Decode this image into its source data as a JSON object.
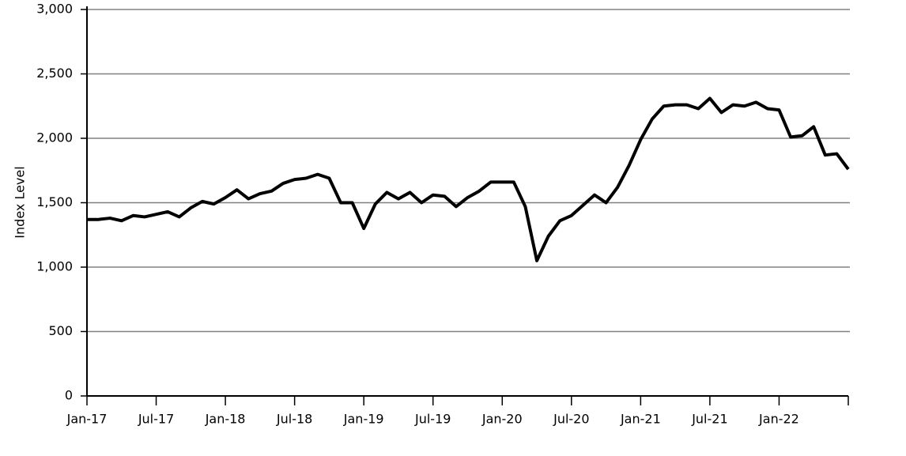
{
  "chart_data": {
    "type": "line",
    "y_label": "Index Level",
    "x": [
      "2017-01",
      "2017-02",
      "2017-03",
      "2017-04",
      "2017-05",
      "2017-06",
      "2017-07",
      "2017-08",
      "2017-09",
      "2017-10",
      "2017-11",
      "2017-12",
      "2018-01",
      "2018-02",
      "2018-03",
      "2018-04",
      "2018-05",
      "2018-06",
      "2018-07",
      "2018-08",
      "2018-09",
      "2018-10",
      "2018-11",
      "2018-12",
      "2019-01",
      "2019-02",
      "2019-03",
      "2019-04",
      "2019-05",
      "2019-06",
      "2019-07",
      "2019-08",
      "2019-09",
      "2019-10",
      "2019-11",
      "2019-12",
      "2020-01",
      "2020-02",
      "2020-03",
      "2020-04",
      "2020-05",
      "2020-06",
      "2020-07",
      "2020-08",
      "2020-09",
      "2020-10",
      "2020-11",
      "2020-12",
      "2021-01",
      "2021-02",
      "2021-03",
      "2021-04",
      "2021-05",
      "2021-06",
      "2021-07",
      "2021-08",
      "2021-09",
      "2021-10",
      "2021-11",
      "2021-12",
      "2022-01",
      "2022-02",
      "2022-03",
      "2022-04",
      "2022-05",
      "2022-06",
      "2022-07"
    ],
    "series": [
      {
        "name": "Index Level",
        "color": "#000000",
        "values": [
          1370,
          1370,
          1380,
          1360,
          1400,
          1390,
          1410,
          1430,
          1390,
          1460,
          1510,
          1490,
          1540,
          1600,
          1530,
          1570,
          1590,
          1650,
          1680,
          1690,
          1720,
          1690,
          1500,
          1500,
          1300,
          1490,
          1580,
          1530,
          1580,
          1500,
          1560,
          1550,
          1470,
          1540,
          1590,
          1660,
          1660,
          1660,
          1470,
          1050,
          1240,
          1360,
          1400,
          1480,
          1560,
          1500,
          1620,
          1790,
          1990,
          2150,
          2250,
          2260,
          2260,
          2230,
          2310,
          2200,
          2260,
          2250,
          2280,
          2230,
          2220,
          2010,
          2020,
          2090,
          1870,
          1880,
          1760
        ]
      }
    ],
    "xlim": [
      "2017-01",
      "2022-07"
    ],
    "xticks": [
      {
        "value": "2017-01",
        "label": "Jan-17"
      },
      {
        "value": "2017-07",
        "label": "Jul-17"
      },
      {
        "value": "2018-01",
        "label": "Jan-18"
      },
      {
        "value": "2018-07",
        "label": "Jul-18"
      },
      {
        "value": "2019-01",
        "label": "Jan-19"
      },
      {
        "value": "2019-07",
        "label": "Jul-19"
      },
      {
        "value": "2020-01",
        "label": "Jan-20"
      },
      {
        "value": "2020-07",
        "label": "Jul-20"
      },
      {
        "value": "2021-01",
        "label": "Jan-21"
      },
      {
        "value": "2021-07",
        "label": "Jul-21"
      },
      {
        "value": "2022-01",
        "label": "Jan-22"
      }
    ],
    "ylim": [
      0,
      3000
    ],
    "yticks": [
      0,
      500,
      {
        "value": 1000,
        "label": "1,000"
      },
      {
        "value": 1500,
        "label": "1,500"
      },
      {
        "value": 2000,
        "label": "2,000"
      },
      {
        "value": 2500,
        "label": "2,500"
      },
      {
        "value": 3000,
        "label": "3,000"
      }
    ],
    "grid": true
  }
}
